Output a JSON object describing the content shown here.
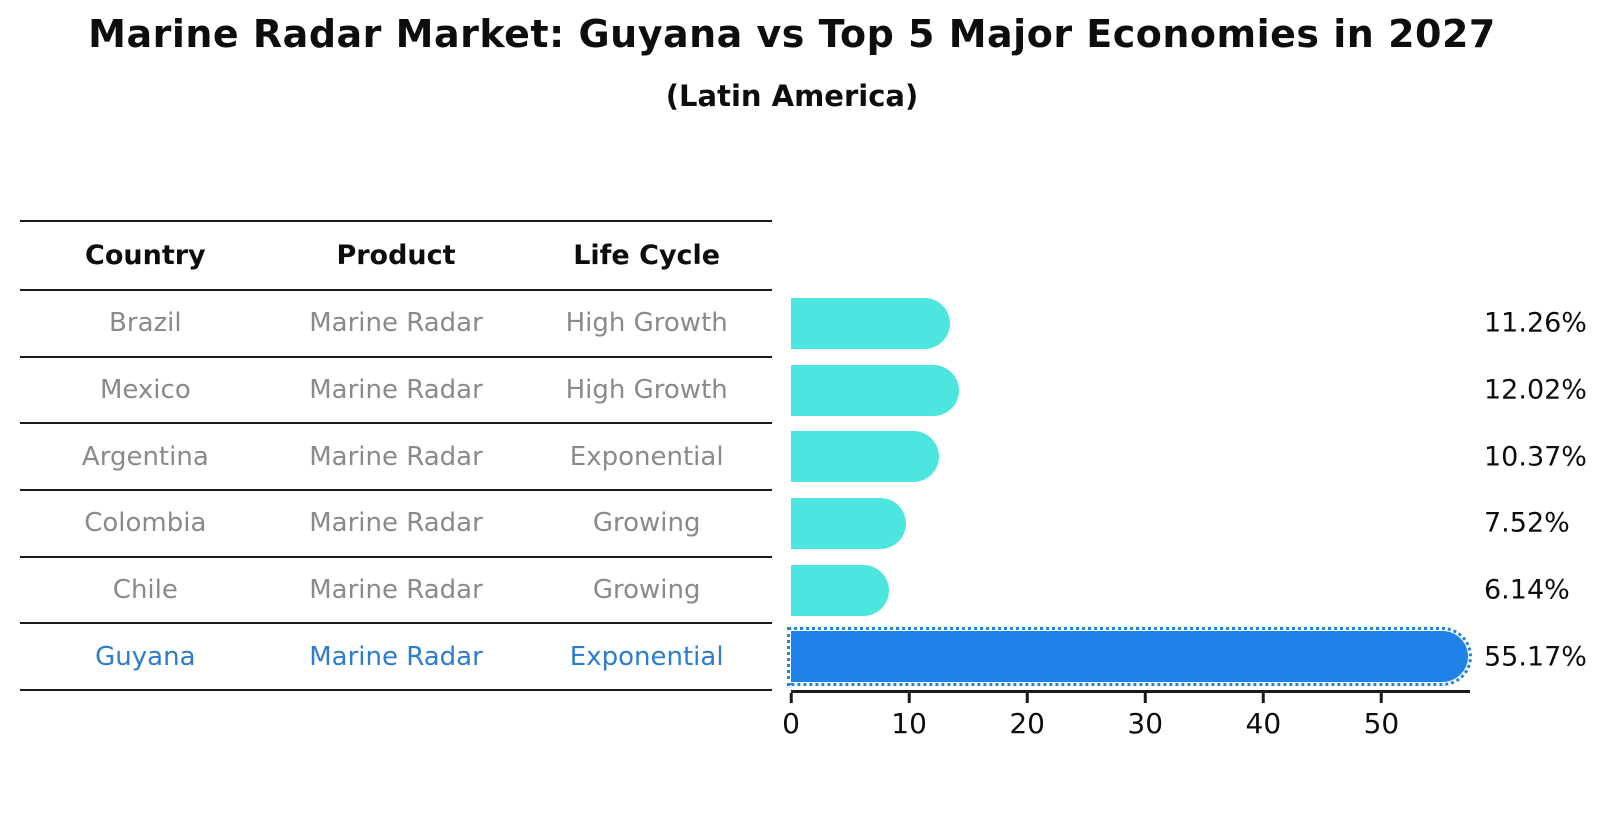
{
  "title": "Marine Radar Market: Guyana vs Top 5 Major Economies in 2027",
  "subtitle": "(Latin America)",
  "table": {
    "headers": [
      "Country",
      "Product",
      "Life Cycle"
    ],
    "rows": [
      {
        "country": "Brazil",
        "product": "Marine Radar",
        "life_cycle": "High Growth",
        "highlight": false
      },
      {
        "country": "Mexico",
        "product": "Marine Radar",
        "life_cycle": "High Growth",
        "highlight": false
      },
      {
        "country": "Argentina",
        "product": "Marine Radar",
        "life_cycle": "Exponential",
        "highlight": false
      },
      {
        "country": "Colombia",
        "product": "Marine Radar",
        "life_cycle": "Growing",
        "highlight": false
      },
      {
        "country": "Chile",
        "product": "Marine Radar",
        "life_cycle": "Growing",
        "highlight": false
      },
      {
        "country": "Guyana",
        "product": "Marine Radar",
        "life_cycle": "Exponential",
        "highlight": true
      }
    ]
  },
  "chart_data": {
    "type": "bar",
    "orientation": "horizontal",
    "title": "Marine Radar Market: Guyana vs Top 5 Major Economies in 2027",
    "subtitle": "(Latin America)",
    "categories": [
      "Brazil",
      "Mexico",
      "Argentina",
      "Colombia",
      "Chile",
      "Guyana"
    ],
    "values": [
      11.26,
      12.02,
      10.37,
      7.52,
      6.14,
      55.17
    ],
    "value_labels": [
      "11.26%",
      "12.02%",
      "10.37%",
      "7.52%",
      "6.14%",
      "55.17%"
    ],
    "xlabel": "",
    "ylabel": "",
    "xlim": [
      0,
      57.5
    ],
    "xticks": [
      0,
      10,
      20,
      30,
      40,
      50
    ],
    "grid": false,
    "legend": "none",
    "highlight_index": 5
  },
  "colors": {
    "bar_cyan": "#4DE5E0",
    "bar_highlight_blue": "#1E82E8",
    "highlight_text_blue": "#2E7CCC",
    "body_text_gray": "#8A8A8A",
    "heading_black": "#0D0D0D",
    "line_black": "#1A1A1A",
    "background": "#FFFFFF"
  }
}
